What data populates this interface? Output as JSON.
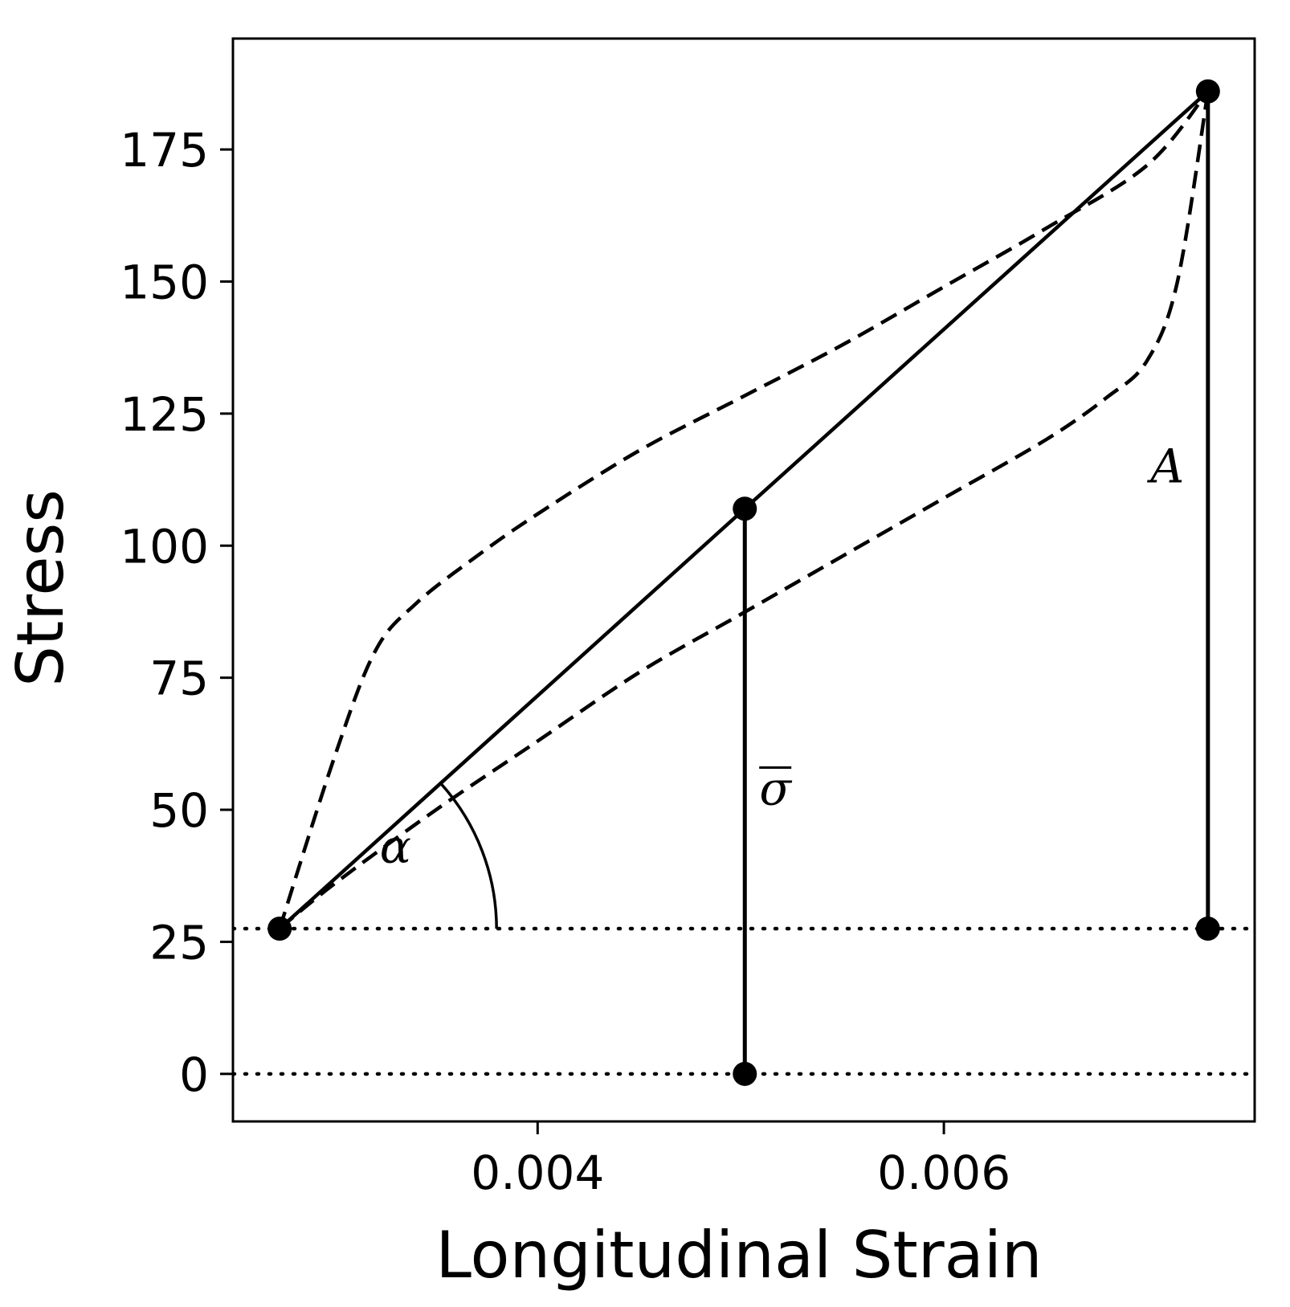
{
  "chart_data": {
    "type": "line",
    "title": "",
    "xlabel": "Longitudinal Strain",
    "ylabel": "Stress",
    "xlim": [
      0.0025,
      0.00753
    ],
    "ylim": [
      -9,
      196
    ],
    "xticks": [
      {
        "value": 0.004,
        "label": "0.004"
      },
      {
        "value": 0.006,
        "label": "0.006"
      }
    ],
    "yticks": [
      {
        "value": 0,
        "label": "0"
      },
      {
        "value": 25,
        "label": "25"
      },
      {
        "value": 50,
        "label": "50"
      },
      {
        "value": 75,
        "label": "75"
      },
      {
        "value": 100,
        "label": "100"
      },
      {
        "value": 125,
        "label": "125"
      },
      {
        "value": 150,
        "label": "150"
      },
      {
        "value": 175,
        "label": "175"
      }
    ],
    "grid": false,
    "legend": "none",
    "series": [
      {
        "style": "dashed",
        "x": [
          0.00273,
          0.003,
          0.0032,
          0.0034,
          0.0037,
          0.004,
          0.0045,
          0.005,
          0.0055,
          0.006,
          0.0065,
          0.007,
          0.0073
        ],
        "y": [
          27.5,
          60,
          80,
          89,
          98,
          106,
          118,
          128,
          138,
          149,
          160,
          172,
          186
        ]
      },
      {
        "style": "dashed",
        "x": [
          0.00273,
          0.003,
          0.0035,
          0.004,
          0.0045,
          0.005,
          0.0055,
          0.006,
          0.0065,
          0.0068,
          0.007,
          0.00715,
          0.0073
        ],
        "y": [
          27.5,
          36,
          50,
          63,
          76,
          87,
          98,
          109,
          120,
          128,
          135,
          150,
          186
        ]
      },
      {
        "style": "solid",
        "x": [
          0.00273,
          0.00502,
          0.0073
        ],
        "y": [
          27.5,
          107,
          186
        ]
      }
    ],
    "stems": [
      {
        "x": 0.00502,
        "y0": 0,
        "y1": 107
      },
      {
        "x": 0.0073,
        "y0": 27.5,
        "y1": 186
      }
    ],
    "points": [
      {
        "x": 0.00273,
        "y": 27.5
      },
      {
        "x": 0.00502,
        "y": 107
      },
      {
        "x": 0.0073,
        "y": 186
      },
      {
        "x": 0.00502,
        "y": 0
      },
      {
        "x": 0.0073,
        "y": 27.5
      }
    ],
    "hlines": [
      {
        "y": 27.5,
        "style": "dotted"
      },
      {
        "y": 0,
        "style": "dotted"
      }
    ],
    "annotations": [
      {
        "text": "α",
        "x": 0.0033,
        "y": 40
      },
      {
        "text": "σ",
        "x": 0.00517,
        "y": 51,
        "overline": true
      },
      {
        "text": "A",
        "x": 0.0071,
        "y": 112
      }
    ],
    "angle_arc": {
      "vertex_x": 0.00273,
      "vertex_y": 27.5,
      "from_y": 27.5,
      "to_point_x": 0.00502,
      "to_point_y": 107
    }
  }
}
